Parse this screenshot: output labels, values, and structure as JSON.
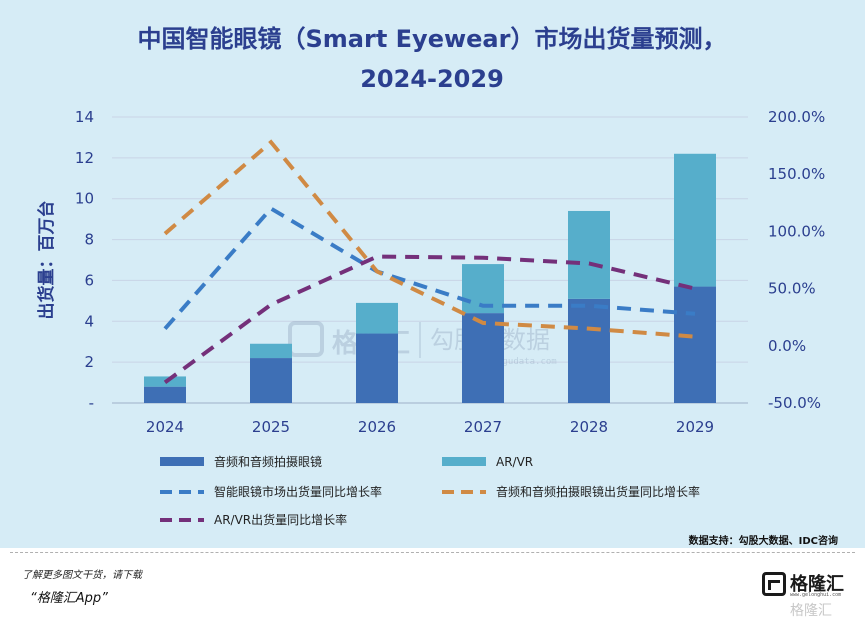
{
  "chart_data": {
    "type": "bar",
    "title_line1": "中国智能眼镜（Smart Eyewear）市场出货量预测，",
    "title_line2": "2024-2029",
    "ylabel": "出货量：百万台",
    "categories": [
      "2024",
      "2025",
      "2026",
      "2027",
      "2028",
      "2029"
    ],
    "y_left": {
      "range": [
        0,
        14
      ],
      "ticks": [
        {
          "value": 14,
          "label": "14"
        },
        {
          "value": 12,
          "label": "12"
        },
        {
          "value": 10,
          "label": "10"
        },
        {
          "value": 8,
          "label": "8"
        },
        {
          "value": 6,
          "label": "6"
        },
        {
          "value": 4,
          "label": "4"
        },
        {
          "value": 2,
          "label": "2"
        },
        {
          "value": 0,
          "label": "-"
        }
      ]
    },
    "y_right": {
      "range": [
        -50,
        200
      ],
      "ticks": [
        {
          "value": 200,
          "label": "200.0%"
        },
        {
          "value": 150,
          "label": "150.0%"
        },
        {
          "value": 100,
          "label": "100.0%"
        },
        {
          "value": 50,
          "label": "50.0%"
        },
        {
          "value": 0,
          "label": "0.0%"
        },
        {
          "value": -50,
          "label": "-50.0%"
        }
      ]
    },
    "bar_series": [
      {
        "name": "音频和音频拍摄眼镜",
        "values": [
          0.8,
          2.2,
          3.4,
          4.4,
          5.1,
          5.7
        ],
        "color": "#3e6fb5"
      },
      {
        "name": "AR/VR",
        "values": [
          0.5,
          0.7,
          1.5,
          2.4,
          4.3,
          6.5
        ],
        "color": "#56aecb"
      }
    ],
    "line_series": [
      {
        "name": "智能眼镜市场出货量同比增长率",
        "values": [
          15,
          120,
          65,
          35,
          35,
          28
        ],
        "color": "#3a7cc6",
        "axis": "right"
      },
      {
        "name": "音频和音频拍摄眼镜出货量同比增长率",
        "values": [
          98,
          178,
          65,
          20,
          15,
          8
        ],
        "color": "#d08a44",
        "axis": "right"
      },
      {
        "name": "AR/VR出货量同比增长率",
        "values": [
          -32,
          36,
          78,
          77,
          72,
          50
        ],
        "color": "#74307a",
        "axis": "right"
      }
    ],
    "legend_position": "bottom",
    "grid": true,
    "source": "数据支持：勾股大数据、IDC咨询"
  },
  "watermark": {
    "brand": "格隆汇",
    "brand2": "勾股大数据",
    "url": "www.gogudata.com"
  },
  "footer": {
    "note": "了解更多图文干货，请下载",
    "app": "“格隆汇App”",
    "logo_text": "格隆汇",
    "logo_sub": "www.gelonghui.com",
    "logo_ghost": "格隆汇"
  }
}
